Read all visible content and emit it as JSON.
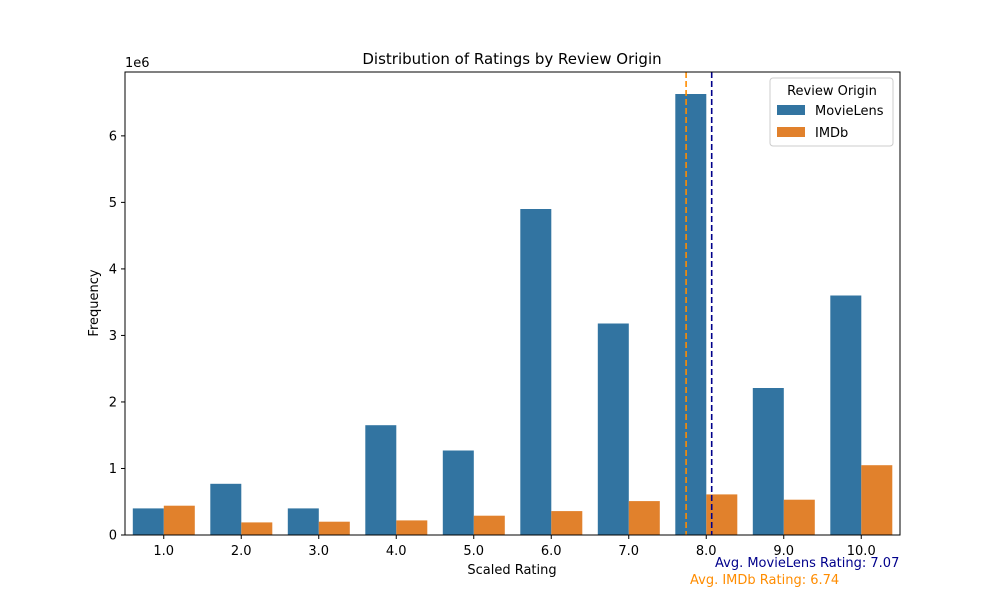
{
  "chart_data": {
    "type": "bar",
    "title": "Distribution of Ratings by Review Origin",
    "xlabel": "Scaled Rating",
    "ylabel": "Frequency",
    "y_scale_label": "1e6",
    "categories": [
      "1.0",
      "2.0",
      "3.0",
      "4.0",
      "5.0",
      "6.0",
      "7.0",
      "8.0",
      "9.0",
      "10.0"
    ],
    "series": [
      {
        "name": "MovieLens",
        "color": "#3274a1",
        "values": [
          0.4,
          0.77,
          0.4,
          1.65,
          1.27,
          4.9,
          3.18,
          6.63,
          2.21,
          3.6
        ]
      },
      {
        "name": "IMDb",
        "color": "#e1812c",
        "values": [
          0.44,
          0.19,
          0.2,
          0.22,
          0.29,
          0.36,
          0.51,
          0.61,
          0.53,
          1.05
        ]
      }
    ],
    "ylim": [
      0,
      6.96
    ],
    "yticks": [
      0,
      1,
      2,
      3,
      4,
      5,
      6
    ],
    "grid": false,
    "legend": {
      "title": "Review Origin",
      "placement": "top-right"
    },
    "reference_lines": [
      {
        "series": "MovieLens",
        "x": 8.07,
        "color": "#00008b",
        "style": "dashed",
        "label": "Avg. MovieLens Rating: 7.07"
      },
      {
        "series": "IMDb",
        "x": 7.74,
        "color": "#ff8c00",
        "style": "dashed",
        "label": "Avg. IMDb Rating: 6.74"
      }
    ]
  }
}
